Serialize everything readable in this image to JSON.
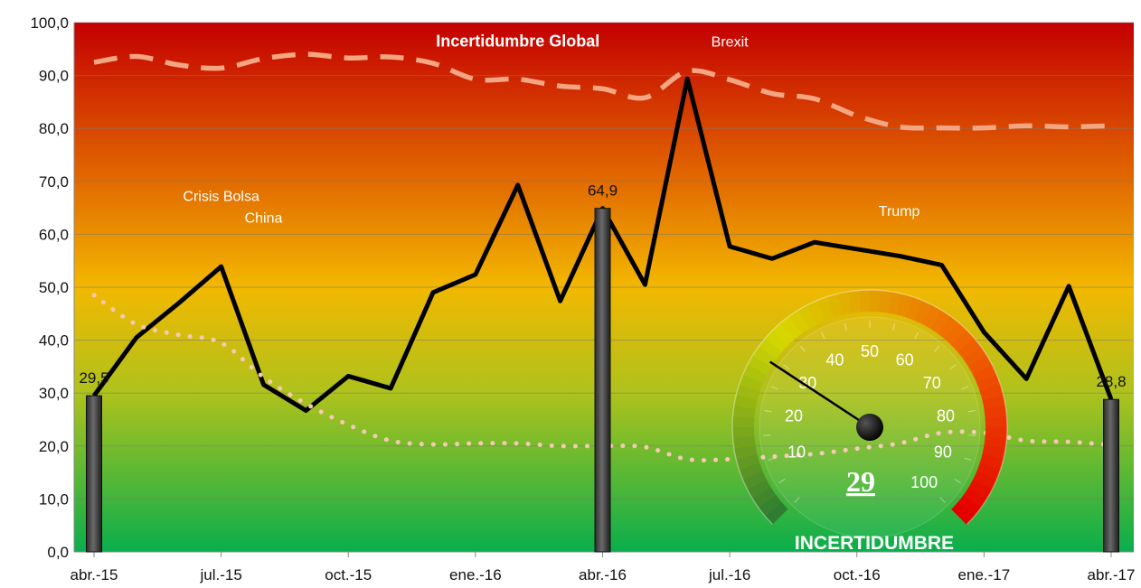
{
  "chart_data": {
    "type": "line",
    "title": "",
    "xlabel": "",
    "ylabel": "",
    "ylim": [
      0,
      100
    ],
    "y_ticks": [
      "0,0",
      "10,0",
      "20,0",
      "30,0",
      "40,0",
      "50,0",
      "60,0",
      "70,0",
      "80,0",
      "90,0",
      "100,0"
    ],
    "x_tick_labels": [
      "abr.-15",
      "jul.-15",
      "oct.-15",
      "ene.-16",
      "abr.-16",
      "jul.-16",
      "oct.-16",
      "ene.-17",
      "abr.-17"
    ],
    "x": [
      "2015-04",
      "2015-05",
      "2015-06",
      "2015-07",
      "2015-08",
      "2015-09",
      "2015-10",
      "2015-11",
      "2015-12",
      "2016-01",
      "2016-02",
      "2016-03",
      "2016-04",
      "2016-05",
      "2016-06",
      "2016-07",
      "2016-08",
      "2016-09",
      "2016-10",
      "2016-11",
      "2016-12",
      "2017-01",
      "2017-02",
      "2017-03",
      "2017-04"
    ],
    "background": "vertical gradient red (top) to orange, yellow and green (bottom)",
    "grid": true,
    "series": [
      {
        "name": "",
        "style": "solid",
        "color": "#000000",
        "values": [
          29.5,
          40.5,
          47.0,
          53.9,
          31.6,
          26.7,
          33.2,
          30.9,
          49.0,
          52.4,
          69.3,
          47.4,
          64.9,
          50.5,
          89.4,
          57.7,
          55.4,
          58.5,
          57.2,
          55.9,
          54.2,
          41.5,
          32.7,
          50.2,
          28.8
        ]
      },
      {
        "name": "",
        "style": "dashed",
        "color": "#f4a582",
        "values": [
          92.5,
          93.6,
          92.0,
          91.4,
          93.2,
          94.0,
          93.3,
          93.5,
          92.3,
          89.3,
          89.3,
          88.0,
          87.5,
          85.8,
          90.8,
          89.2,
          86.6,
          85.6,
          82.4,
          80.3,
          80.1,
          80.1,
          80.5,
          80.3,
          80.5
        ]
      },
      {
        "name": "",
        "style": "dotted",
        "color": "#f6c9b3",
        "values": [
          48.5,
          43.0,
          41.0,
          39.5,
          33.0,
          28.0,
          24.0,
          21.0,
          20.3,
          20.5,
          20.5,
          20.0,
          20.0,
          19.8,
          17.5,
          17.5,
          18.0,
          18.5,
          19.5,
          20.5,
          22.5,
          22.5,
          21.0,
          20.8,
          20.2
        ]
      }
    ],
    "bars": [
      {
        "x": "2015-04",
        "value": 29.5,
        "label": "29,5"
      },
      {
        "x": "2016-04",
        "value": 64.9,
        "label": "64,9"
      },
      {
        "x": "2017-04",
        "value": 28.8,
        "label": "28,8"
      }
    ],
    "annotations": [
      {
        "text": "Incertidumbre Global",
        "bold": true,
        "x": "2016-02",
        "y": 95.5
      },
      {
        "text": "Brexit",
        "x": "2016-07",
        "y": 95.5
      },
      {
        "text": "Crisis Bolsa",
        "x": "2015-07",
        "y": 66.3
      },
      {
        "text": "China",
        "x": "2015-08",
        "y": 62.2
      },
      {
        "text": "Trump",
        "x": "2016-11",
        "y": 63.5
      }
    ],
    "gauge": {
      "value": 29,
      "value_label": "29",
      "label": "INCERTIDUMBRE",
      "scale": [
        "10",
        "20",
        "30",
        "40",
        "50",
        "60",
        "70",
        "80",
        "90",
        "100"
      ],
      "min": 0,
      "max": 100,
      "colors": [
        "#2e7d32",
        "#d7d800",
        "#f06a00",
        "#e40000"
      ]
    }
  }
}
